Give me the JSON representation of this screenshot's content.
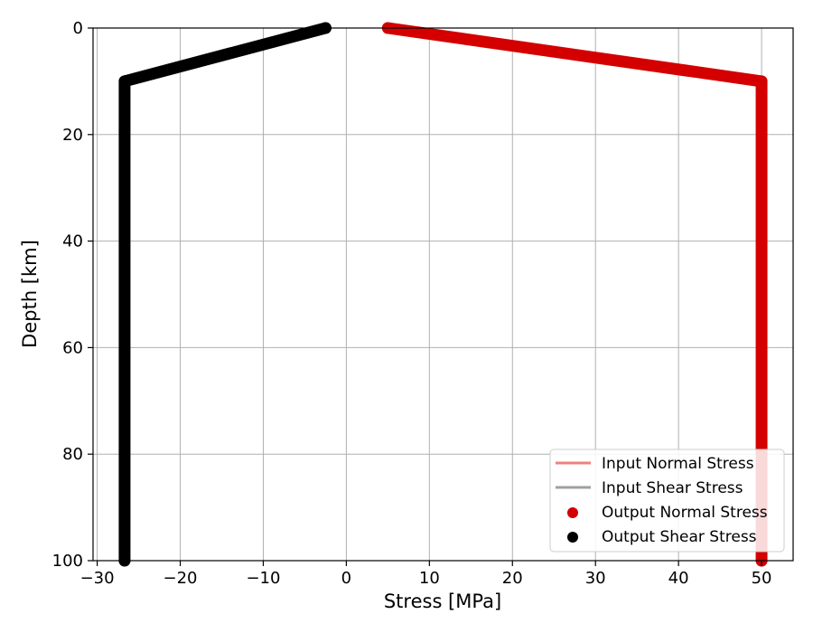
{
  "chart_data": {
    "type": "scatter",
    "xlabel": "Stress [MPa]",
    "ylabel": "Depth [km]",
    "xlim": [
      -30.5,
      53.8
    ],
    "ylim": [
      100,
      0
    ],
    "y_inverted": true,
    "grid": true,
    "x_ticks": [
      -30,
      -20,
      -10,
      0,
      10,
      20,
      30,
      40,
      50
    ],
    "x_tick_labels": [
      "−30",
      "−20",
      "−10",
      "0",
      "10",
      "20",
      "30",
      "40",
      "50"
    ],
    "y_ticks": [
      0,
      20,
      40,
      60,
      80,
      100
    ],
    "y_tick_labels": [
      "0",
      "20",
      "40",
      "60",
      "80",
      "100"
    ],
    "legend_position": "lower-right",
    "series": [
      {
        "name": "Input Normal Stress",
        "kind": "line",
        "color": "#f08080",
        "points": [
          [
            5,
            0
          ],
          [
            50,
            10
          ],
          [
            50,
            100
          ]
        ]
      },
      {
        "name": "Input Shear Stress",
        "kind": "line",
        "color": "#a0a0a0",
        "points": [
          [
            -2.5,
            0
          ],
          [
            -26.7,
            10
          ],
          [
            -26.7,
            100
          ]
        ]
      },
      {
        "name": "Output Normal Stress",
        "kind": "scatter",
        "color": "#d40000",
        "points": [
          [
            5,
            0
          ],
          [
            50,
            10
          ],
          [
            50,
            100
          ]
        ]
      },
      {
        "name": "Output Shear Stress",
        "kind": "scatter",
        "color": "#000000",
        "points": [
          [
            -2.5,
            0
          ],
          [
            -26.7,
            10
          ],
          [
            -26.7,
            100
          ]
        ]
      }
    ]
  }
}
